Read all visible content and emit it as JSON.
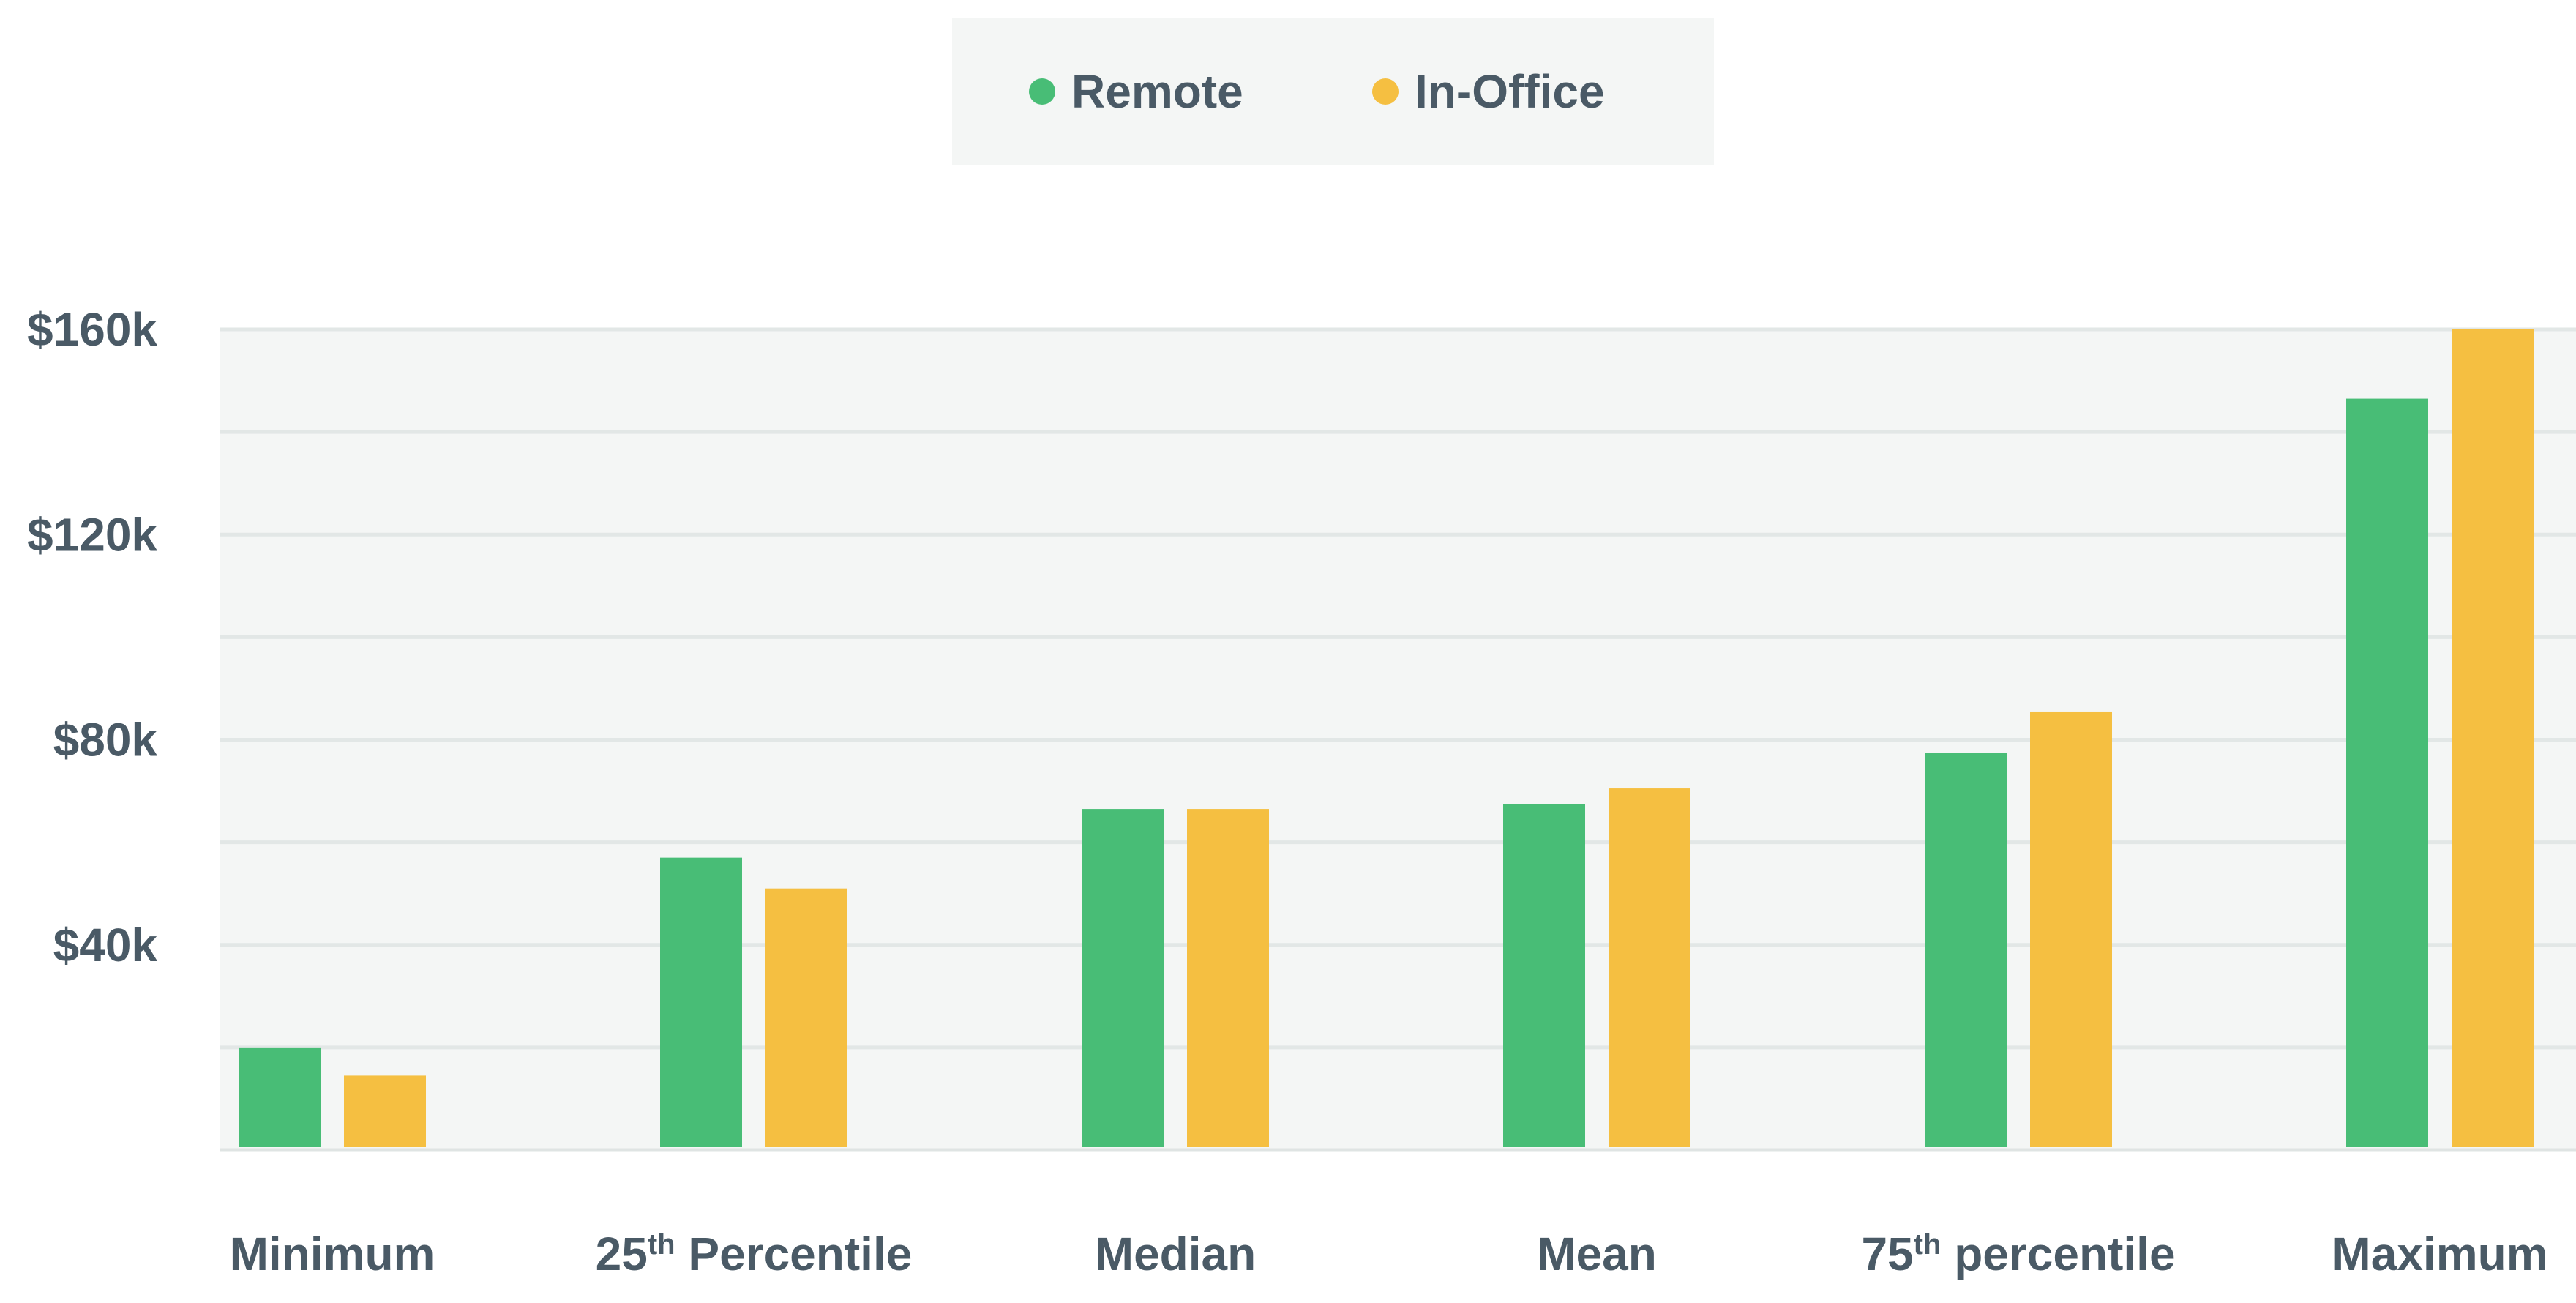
{
  "chart_data": {
    "type": "bar",
    "categories": [
      {
        "pre": "Minimum",
        "sup": "",
        "post": ""
      },
      {
        "pre": "25",
        "sup": "th",
        "post": " Percentile"
      },
      {
        "pre": "Median",
        "sup": "",
        "post": ""
      },
      {
        "pre": "Mean",
        "sup": "",
        "post": ""
      },
      {
        "pre": "75",
        "sup": "th",
        "post": " percentile"
      },
      {
        "pre": "Maximum",
        "sup": "",
        "post": ""
      }
    ],
    "series": [
      {
        "name": "Remote",
        "color": "#48bd76",
        "values": [
          20000,
          57000,
          66500,
          67500,
          77500,
          146500
        ]
      },
      {
        "name": "In-Office",
        "color": "#f5bf41",
        "values": [
          14500,
          51000,
          66500,
          70500,
          85500,
          160000
        ]
      }
    ],
    "ylim": [
      0,
      160000
    ],
    "y_ticks": [
      {
        "value": 40000,
        "label": "$40k"
      },
      {
        "value": 80000,
        "label": "$80k"
      },
      {
        "value": 120000,
        "label": "$120k"
      },
      {
        "value": 160000,
        "label": "$160k"
      }
    ],
    "minor_gridlines": [
      20000,
      60000,
      100000,
      140000
    ],
    "grid": true,
    "legend_position": "top-center",
    "xlabel": "",
    "ylabel": "",
    "title": ""
  }
}
